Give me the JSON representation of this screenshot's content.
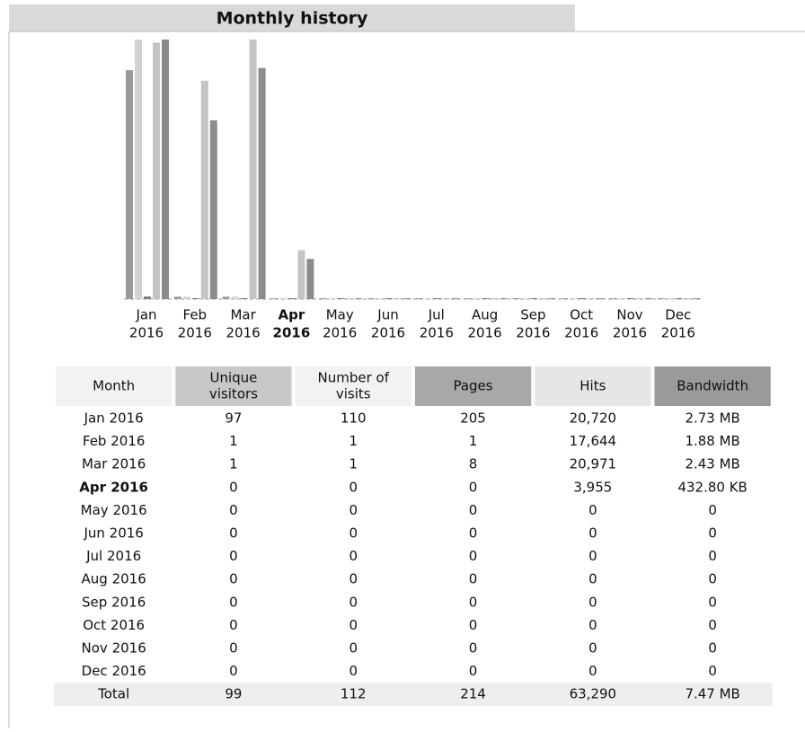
{
  "header": {
    "title": "Monthly history"
  },
  "chart": {
    "labels": [
      [
        "Jan",
        "2016"
      ],
      [
        "Feb",
        "2016"
      ],
      [
        "Mar",
        "2016"
      ],
      [
        "Apr",
        "2016"
      ],
      [
        "May",
        "2016"
      ],
      [
        "Jun",
        "2016"
      ],
      [
        "Jul",
        "2016"
      ],
      [
        "Aug",
        "2016"
      ],
      [
        "Sep",
        "2016"
      ],
      [
        "Oct",
        "2016"
      ],
      [
        "Nov",
        "2016"
      ],
      [
        "Dec",
        "2016"
      ]
    ],
    "current_index": 3,
    "colors": {
      "visitors": "#9a9a9a",
      "visits": "#d2d2d2",
      "pages": "#7a7a7a",
      "hits": "#c4c4c4",
      "bandwidth": "#8c8c8c"
    }
  },
  "table": {
    "headers": [
      [
        "Month"
      ],
      [
        "Unique",
        "visitors"
      ],
      [
        "Number of",
        "visits"
      ],
      [
        "Pages"
      ],
      [
        "Hits"
      ],
      [
        "Bandwidth"
      ]
    ],
    "rows": [
      {
        "month": "Jan 2016",
        "visitors": 97,
        "visits": 110,
        "pages": 205,
        "hits": {
          "value": 20720,
          "label": "20,720"
        },
        "bandwidth": {
          "value": 2795.52,
          "label": "2.73 MB"
        }
      },
      {
        "month": "Feb 2016",
        "visitors": 1,
        "visits": 1,
        "pages": 1,
        "hits": {
          "value": 17644,
          "label": "17,644"
        },
        "bandwidth": {
          "value": 1925.12,
          "label": "1.88 MB"
        }
      },
      {
        "month": "Mar 2016",
        "visitors": 1,
        "visits": 1,
        "pages": 8,
        "hits": {
          "value": 20971,
          "label": "20,971"
        },
        "bandwidth": {
          "value": 2488.32,
          "label": "2.43 MB"
        }
      },
      {
        "month": "Apr 2016",
        "visitors": 0,
        "visits": 0,
        "pages": 0,
        "hits": {
          "value": 3955,
          "label": "3,955"
        },
        "bandwidth": {
          "value": 432.8,
          "label": "432.80 KB"
        }
      },
      {
        "month": "May 2016",
        "visitors": 0,
        "visits": 0,
        "pages": 0,
        "hits": 0,
        "bandwidth": 0
      },
      {
        "month": "Jun 2016",
        "visitors": 0,
        "visits": 0,
        "pages": 0,
        "hits": 0,
        "bandwidth": 0
      },
      {
        "month": "Jul 2016",
        "visitors": 0,
        "visits": 0,
        "pages": 0,
        "hits": 0,
        "bandwidth": 0
      },
      {
        "month": "Aug 2016",
        "visitors": 0,
        "visits": 0,
        "pages": 0,
        "hits": 0,
        "bandwidth": 0
      },
      {
        "month": "Sep 2016",
        "visitors": 0,
        "visits": 0,
        "pages": 0,
        "hits": 0,
        "bandwidth": 0
      },
      {
        "month": "Oct 2016",
        "visitors": 0,
        "visits": 0,
        "pages": 0,
        "hits": 0,
        "bandwidth": 0
      },
      {
        "month": "Nov 2016",
        "visitors": 0,
        "visits": 0,
        "pages": 0,
        "hits": 0,
        "bandwidth": 0
      },
      {
        "month": "Dec 2016",
        "visitors": 0,
        "visits": 0,
        "pages": 0,
        "hits": 0,
        "bandwidth": 0
      }
    ],
    "total": {
      "month": "Total",
      "visitors": 99,
      "visits": 112,
      "pages": 214,
      "hits": {
        "value": 63290,
        "label": "63,290"
      },
      "bandwidth": {
        "value": 7649.28,
        "label": "7.47 MB"
      }
    }
  }
}
